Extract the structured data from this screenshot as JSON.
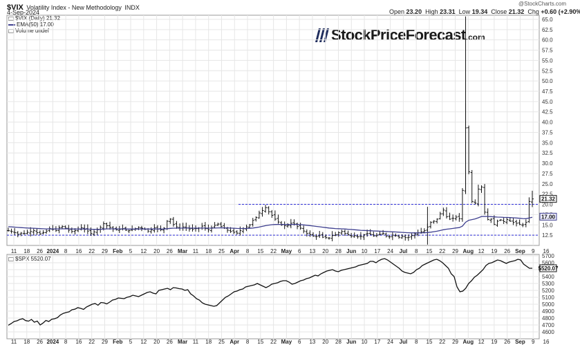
{
  "header": {
    "symbol": "$VIX",
    "name": "Volatility Index - New Methodology",
    "exchange": "INDX",
    "date": "4-Sep-2024",
    "copyright": "@StockCharts.com",
    "ohlc": {
      "open_label": "Open",
      "open": "23.20",
      "high_label": "High",
      "high": "23.31",
      "low_label": "Low",
      "low": "19.34",
      "close_label": "Close",
      "close": "21.32",
      "chg_label": "Chg",
      "chg": "+0.60 (+2.90%)"
    }
  },
  "legend": {
    "vix": "$VIX (Daily) 21.32",
    "ema": "EMA(50) 17.00",
    "volume": "Volume undef",
    "spx": "$SPX 5520.07"
  },
  "watermark": {
    "text": "StockPriceForecast",
    "suffix": ".com"
  },
  "colors": {
    "price": "#111111",
    "ema": "#3e3f8f",
    "dashed": "#2b2bd6",
    "grid": "#e6e6e6"
  },
  "chart_data": [
    {
      "type": "ohlc",
      "series_name": "$VIX (Daily)",
      "y_axis_side": "right",
      "ylim": [
        10,
        66
      ],
      "y_ticks": [
        "12.5",
        "15.0",
        "17.5",
        "20.0",
        "22.5",
        "25.0",
        "27.5",
        "30.0",
        "32.5",
        "35.0",
        "37.5",
        "40.0",
        "42.5",
        "45.0",
        "47.5",
        "50.0",
        "52.5",
        "55.0",
        "57.5",
        "60.0",
        "62.5",
        "65.0"
      ],
      "x_tick_labels": [
        "11",
        "18",
        "26",
        "2024",
        "8",
        "16",
        "22",
        "29",
        "Feb",
        "5",
        "12",
        "20",
        "26",
        "Mar",
        "11",
        "18",
        "25",
        "Apr",
        "8",
        "15",
        "22",
        "May",
        "6",
        "13",
        "20",
        "28",
        "Jun",
        "10",
        "17",
        "24",
        "Jul",
        "8",
        "15",
        "22",
        "29",
        "Aug",
        "12",
        "19",
        "26",
        "Sep",
        "9",
        "16"
      ],
      "close_values": [
        13.6,
        13.4,
        13.1,
        12.7,
        13.0,
        12.9,
        13.2,
        13.4,
        13.6,
        13.1,
        12.8,
        13.1,
        13.5,
        14.1,
        13.9,
        13.6,
        14.3,
        14.6,
        14.2,
        13.7,
        13.4,
        13.6,
        14.0,
        14.3,
        13.9,
        13.5,
        12.9,
        13.3,
        13.8,
        14.4,
        15.3,
        14.8,
        14.4,
        14.0,
        13.8,
        13.9,
        14.1,
        13.7,
        13.6,
        13.9,
        14.1,
        14.4,
        14.2,
        13.9,
        13.5,
        13.8,
        14.3,
        14.0,
        13.8,
        14.2,
        15.9,
        16.4,
        15.1,
        14.5,
        14.2,
        14.5,
        14.3,
        14.0,
        13.9,
        14.1,
        14.2,
        14.7,
        14.1,
        13.8,
        14.3,
        14.9,
        15.2,
        14.6,
        14.2,
        13.7,
        13.4,
        13.2,
        13.0,
        13.6,
        14.1,
        14.5,
        15.0,
        16.1,
        16.8,
        17.9,
        18.5,
        19.2,
        18.2,
        17.3,
        16.4,
        15.7,
        15.0,
        14.8,
        14.9,
        15.4,
        15.2,
        14.6,
        14.2,
        13.5,
        12.9,
        12.6,
        12.3,
        12.2,
        12.5,
        12.0,
        11.9,
        11.8,
        12.4,
        12.6,
        13.1,
        13.4,
        12.9,
        12.6,
        12.3,
        12.4,
        12.1,
        12.2,
        12.6,
        12.9,
        12.7,
        12.3,
        12.5,
        12.7,
        12.9,
        12.3,
        12.1,
        12.5,
        12.4,
        12.0,
        12.2,
        11.9,
        12.0,
        12.4,
        12.8,
        13.1,
        13.3,
        13.6,
        14.5,
        15.6,
        15.9,
        16.4,
        17.7,
        18.6,
        17.0,
        16.4,
        16.6,
        16.9,
        16.5,
        23.4,
        38.6,
        27.9,
        20.7,
        20.3,
        23.7,
        24.2,
        18.1,
        16.3,
        16.4,
        15.1,
        15.9,
        16.2,
        15.8,
        16.3,
        15.9,
        15.6,
        15.4,
        15.1,
        15.0,
        15.6,
        20.7,
        21.32
      ],
      "ema50_end": 17.0,
      "last": 21.32,
      "dashed_levels": [
        20.0,
        12.5
      ],
      "dashed_level_labels": [
        "20.0",
        "12.5"
      ],
      "annotations": [
        "21.32",
        "17.00"
      ]
    },
    {
      "type": "line",
      "series_name": "$SPX",
      "y_axis_side": "right",
      "ylim": [
        4500,
        5720
      ],
      "y_ticks": [
        "4600",
        "4700",
        "4800",
        "4900",
        "5000",
        "5100",
        "5200",
        "5300",
        "5400",
        "5500",
        "5600",
        "5700"
      ],
      "values": [
        4696,
        4720,
        4750,
        4760,
        4780,
        4790,
        4763,
        4755,
        4780,
        4740,
        4756,
        4700,
        4728,
        4765,
        4750,
        4783,
        4790,
        4806,
        4845,
        4868,
        4880,
        4890,
        4920,
        4928,
        4950,
        4940,
        4925,
        4960,
        4980,
        5000,
        5010,
        4985,
        5025,
        5020,
        5005,
        5030,
        5060,
        5070,
        5090,
        5085,
        5080,
        5100,
        5110,
        5130,
        5120,
        5110,
        5130,
        5150,
        5170,
        5180,
        5160,
        5150,
        5200,
        5210,
        5220,
        5230,
        5210,
        5240,
        5235,
        5225,
        5220,
        5200,
        5210,
        5150,
        5120,
        5080,
        5060,
        5020,
        5000,
        4990,
        4980,
        4970,
        4980,
        5020,
        5060,
        5100,
        5120,
        5150,
        5180,
        5190,
        5210,
        5220,
        5250,
        5260,
        5270,
        5280,
        5300,
        5280,
        5260,
        5240,
        5260,
        5290,
        5300,
        5310,
        5330,
        5340,
        5340,
        5320,
        5290,
        5300,
        5320,
        5340,
        5350,
        5370,
        5380,
        5400,
        5420,
        5410,
        5440,
        5460,
        5480,
        5490,
        5500,
        5480,
        5470,
        5490,
        5500,
        5510,
        5520,
        5530,
        5540,
        5560,
        5570,
        5580,
        5590,
        5620,
        5620,
        5600,
        5630,
        5650,
        5660,
        5640,
        5610,
        5580,
        5550,
        5520,
        5480,
        5460,
        5450,
        5440,
        5460,
        5500,
        5520,
        5560,
        5580,
        5600,
        5620,
        5640,
        5650,
        5630,
        5600,
        5560,
        5520,
        5440,
        5400,
        5250,
        5180,
        5190,
        5230,
        5300,
        5340,
        5390,
        5420,
        5460,
        5500,
        5560,
        5590,
        5600,
        5620,
        5640,
        5630,
        5610,
        5590,
        5610,
        5620,
        5630,
        5650,
        5640,
        5580,
        5550,
        5520,
        5520.07
      ],
      "last": 5520.07,
      "annotations": [
        "5520.07"
      ]
    }
  ]
}
